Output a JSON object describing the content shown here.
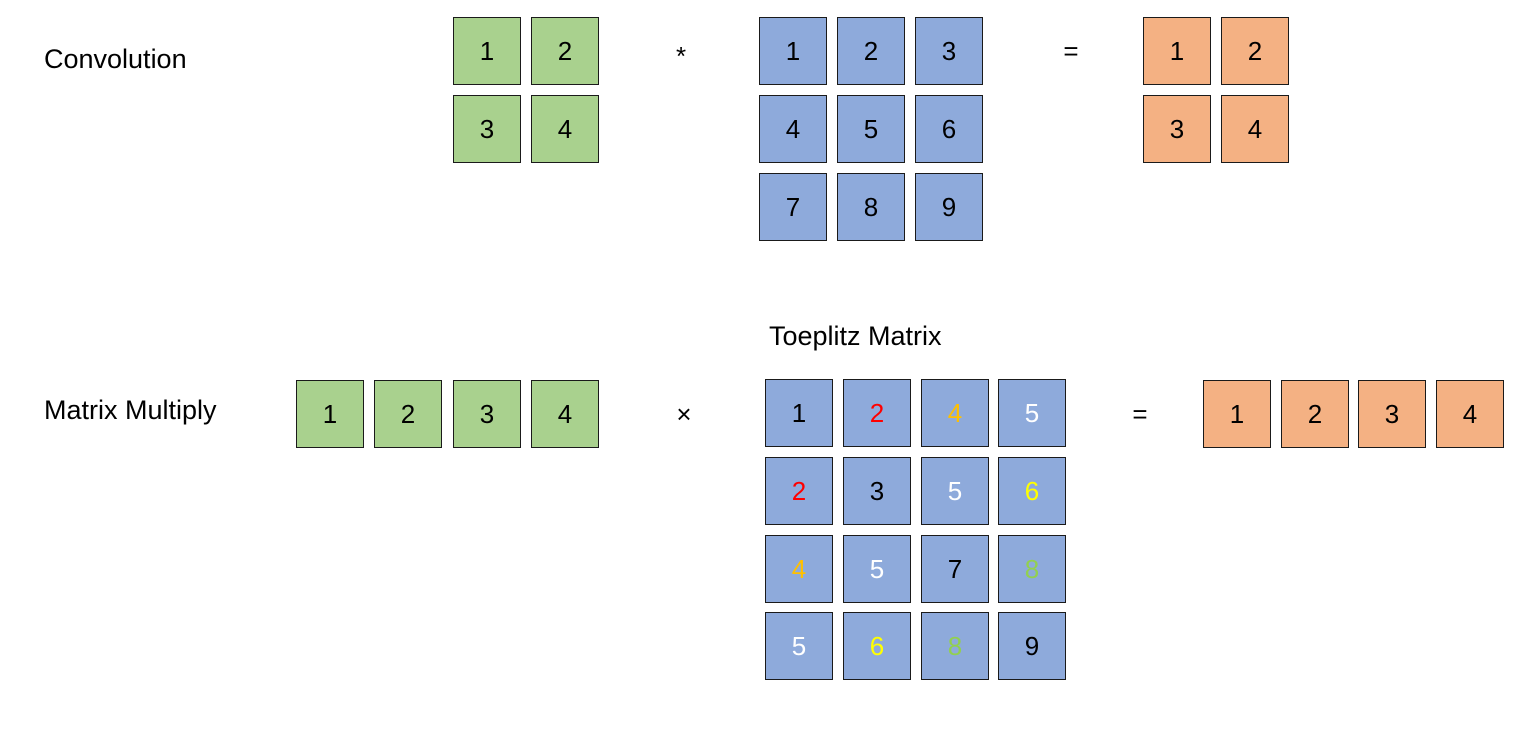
{
  "labels": {
    "convolution": "Convolution",
    "matrix_multiply": "Matrix Multiply",
    "toeplitz": "Toeplitz Matrix"
  },
  "operators": {
    "conv_star": "*",
    "conv_equals": "=",
    "mm_times": "×",
    "mm_equals": "="
  },
  "colors": {
    "green_fill": "#a9d18e",
    "blue_fill": "#8eaadb",
    "orange_fill": "#f4b183",
    "text_black": "#000000",
    "text_red": "#ff0000",
    "text_gold": "#ffc000",
    "text_white": "#ffffff",
    "text_yellow": "#ffff00",
    "text_lightgreen": "#92d050"
  },
  "convolution": {
    "kernel": [
      [
        "1",
        "2"
      ],
      [
        "3",
        "4"
      ]
    ],
    "input": [
      [
        "1",
        "2",
        "3"
      ],
      [
        "4",
        "5",
        "6"
      ],
      [
        "7",
        "8",
        "9"
      ]
    ],
    "output": [
      [
        "1",
        "2"
      ],
      [
        "3",
        "4"
      ]
    ]
  },
  "matrix_multiply": {
    "vector": [
      "1",
      "2",
      "3",
      "4"
    ],
    "toeplitz": [
      [
        {
          "v": "1",
          "c": "text_black"
        },
        {
          "v": "2",
          "c": "text_red"
        },
        {
          "v": "4",
          "c": "text_gold"
        },
        {
          "v": "5",
          "c": "text_white"
        }
      ],
      [
        {
          "v": "2",
          "c": "text_red"
        },
        {
          "v": "3",
          "c": "text_black"
        },
        {
          "v": "5",
          "c": "text_white"
        },
        {
          "v": "6",
          "c": "text_yellow"
        }
      ],
      [
        {
          "v": "4",
          "c": "text_gold"
        },
        {
          "v": "5",
          "c": "text_white"
        },
        {
          "v": "7",
          "c": "text_black"
        },
        {
          "v": "8",
          "c": "text_lightgreen"
        }
      ],
      [
        {
          "v": "5",
          "c": "text_white"
        },
        {
          "v": "6",
          "c": "text_yellow"
        },
        {
          "v": "8",
          "c": "text_lightgreen"
        },
        {
          "v": "9",
          "c": "text_black"
        }
      ]
    ],
    "output": [
      "1",
      "2",
      "3",
      "4"
    ]
  }
}
